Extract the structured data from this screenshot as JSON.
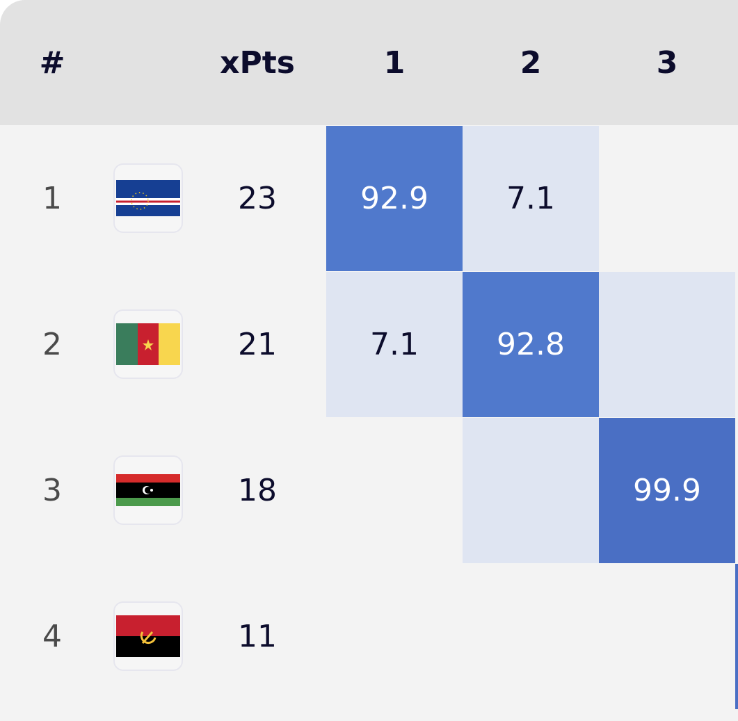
{
  "table": {
    "header": {
      "rank": "#",
      "xpts": "xPts",
      "positions": [
        1,
        2,
        3
      ]
    },
    "rows": [
      {
        "rank": 1,
        "xpts": 23,
        "probs": [
          92.9,
          7.1,
          null
        ],
        "shades": [
          "#5079cc",
          "#dfe5f2",
          null
        ]
      },
      {
        "rank": 2,
        "xpts": 21,
        "probs": [
          7.1,
          92.8,
          null
        ],
        "shades": [
          "#dfe5f2",
          "#5079cc",
          "#dfe5f2"
        ]
      },
      {
        "rank": 3,
        "xpts": 18,
        "probs": [
          null,
          null,
          99.9
        ],
        "shades": [
          null,
          "#dfe5f2",
          "#4a6fc4"
        ]
      },
      {
        "rank": 4,
        "xpts": 11,
        "probs": [
          null,
          null,
          null
        ],
        "shades": [
          null,
          null,
          null
        ]
      }
    ]
  }
}
